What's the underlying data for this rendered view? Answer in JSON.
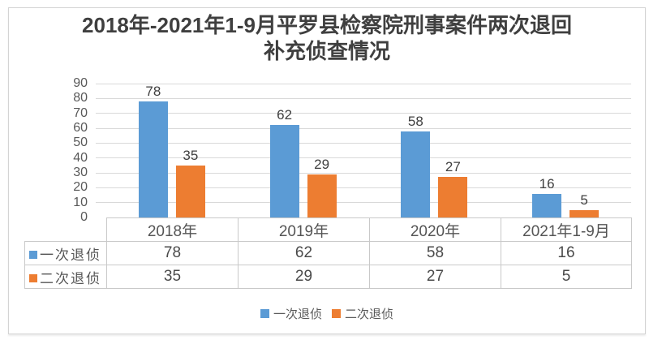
{
  "title": {
    "line1": "2018年-2021年1-9月平罗县检察院刑事案件两次退回",
    "line2": "补充侦查情况"
  },
  "chart_data": {
    "type": "bar",
    "title": "2018年-2021年1-9月平罗县检察院刑事案件两次退回补充侦查情况",
    "categories": [
      "2018年",
      "2019年",
      "2020年",
      "2021年1-9月"
    ],
    "series": [
      {
        "name": "一次退侦",
        "color": "#5B9BD5",
        "values": [
          78,
          62,
          58,
          16
        ]
      },
      {
        "name": "二次退侦",
        "color": "#ED7D31",
        "values": [
          35,
          29,
          27,
          5
        ]
      }
    ],
    "ylim": [
      0,
      90
    ],
    "yticks": [
      0,
      10,
      20,
      30,
      40,
      50,
      60,
      70,
      80,
      90
    ],
    "grid": true,
    "data_labels": true,
    "data_table_shown": true,
    "legend_position": "bottom"
  },
  "colors": {
    "series1": "#5B9BD5",
    "series2": "#ED7D31",
    "gridline": "#D9D9D9",
    "table_border": "#C9C9C9",
    "title_text": "#3F3F3F",
    "axis_text": "#595959",
    "value_text": "#404040",
    "frame_border": "#D4D4D4"
  }
}
